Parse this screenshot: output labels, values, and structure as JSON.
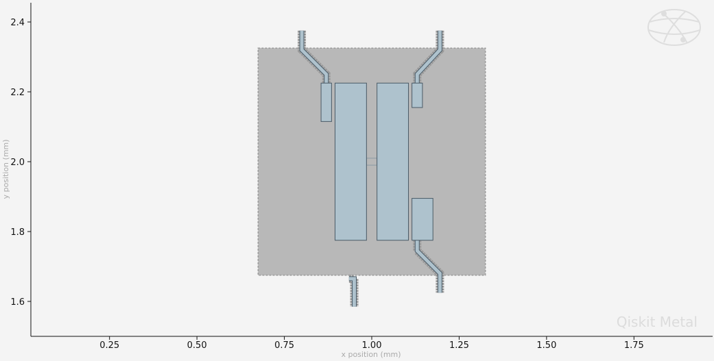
{
  "chart_data": {
    "type": "layout",
    "xlabel": "x position (mm)",
    "ylabel": "y position (mm)",
    "xlim": [
      0.025,
      1.975
    ],
    "ylim": [
      1.5,
      2.455
    ],
    "x_ticks": [
      0.25,
      0.5,
      0.75,
      1.0,
      1.25,
      1.5,
      1.75
    ],
    "x_tick_labels": [
      "0.25",
      "0.50",
      "0.75",
      "1.00",
      "1.25",
      "1.50",
      "1.75"
    ],
    "y_ticks": [
      1.6,
      1.8,
      2.0,
      2.2,
      2.4
    ],
    "y_tick_labels": [
      "1.6",
      "1.8",
      "2.0",
      "2.2",
      "2.4"
    ],
    "grid": false,
    "colors": {
      "background": "#f4f4f4",
      "ground_plane": "#b8b8b8",
      "metal": "#aec2cd",
      "outline": "#4a5a66",
      "route_gap": "#9a9a9a",
      "route_trace": "#aec2cd"
    },
    "ground_plane": [
      0.675,
      1.675,
      1.325,
      2.325
    ],
    "pads": [
      {
        "name": "left-pad",
        "rect": [
          0.895,
          1.775,
          0.985,
          2.225
        ]
      },
      {
        "name": "right-pad",
        "rect": [
          1.015,
          1.775,
          1.105,
          2.225
        ]
      },
      {
        "name": "connector-pad-top-left",
        "rect": [
          0.855,
          2.115,
          0.885,
          2.225
        ]
      },
      {
        "name": "connector-pad-top-right",
        "rect": [
          1.115,
          2.155,
          1.145,
          2.225
        ]
      },
      {
        "name": "connector-pad-bottom-right",
        "rect": [
          1.115,
          1.775,
          1.175,
          1.895
        ]
      }
    ],
    "junction": [
      0.985,
      1.99,
      1.015,
      2.01
    ],
    "routes": [
      {
        "name": "route-top-left",
        "points": [
          [
            0.8,
            2.375
          ],
          [
            0.8,
            2.32
          ],
          [
            0.87,
            2.25
          ],
          [
            0.87,
            2.225
          ]
        ]
      },
      {
        "name": "route-top-right",
        "points": [
          [
            1.195,
            2.375
          ],
          [
            1.195,
            2.32
          ],
          [
            1.13,
            2.25
          ],
          [
            1.13,
            2.225
          ]
        ]
      },
      {
        "name": "route-bottom-right",
        "points": [
          [
            1.13,
            1.775
          ],
          [
            1.13,
            1.745
          ],
          [
            1.195,
            1.68
          ],
          [
            1.195,
            1.625
          ]
        ]
      },
      {
        "name": "route-bottom-stub",
        "points": [
          [
            0.935,
            1.665
          ],
          [
            0.95,
            1.665
          ],
          [
            0.95,
            1.585
          ]
        ]
      }
    ]
  },
  "watermark": {
    "text": "Qiskit Metal",
    "logo": "qiskit-globe-icon"
  }
}
